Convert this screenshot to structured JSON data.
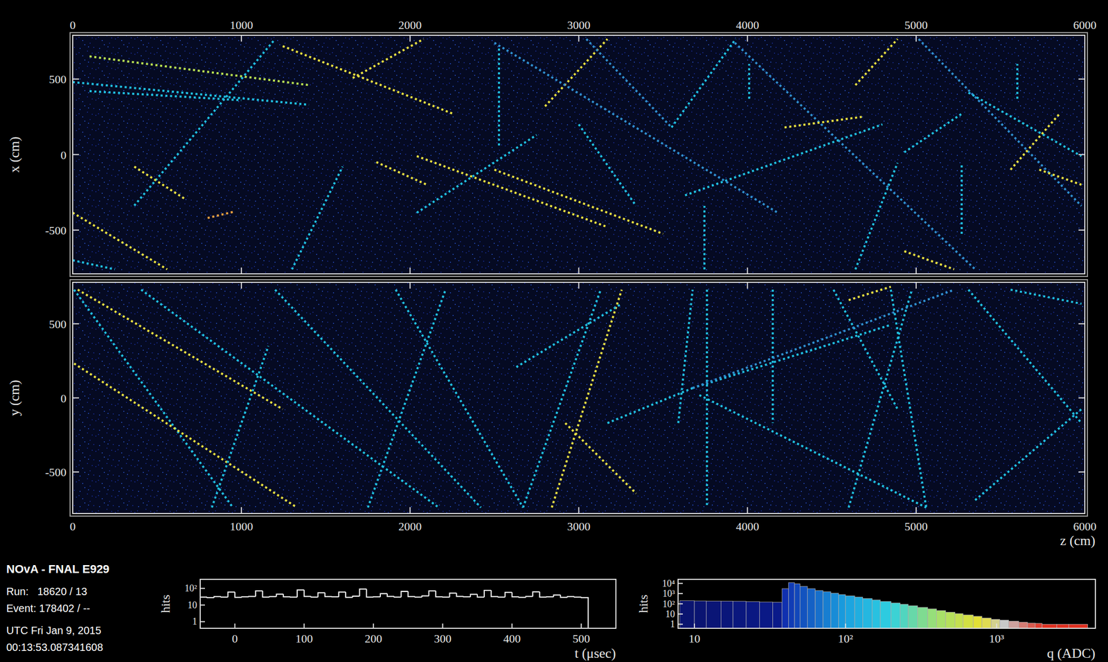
{
  "chart_data": [
    {
      "type": "line",
      "ylabel": "x (cm)",
      "xlim": [
        0,
        6000
      ],
      "xticks": [
        0,
        1000,
        2000,
        3000,
        4000,
        5000,
        6000
      ],
      "ylim": [
        -790,
        790
      ],
      "yticks": [
        -500,
        0,
        500
      ],
      "grid": false,
      "line_style": "dotted",
      "series": [
        {
          "color": "#b8e050",
          "x": [
            100,
            1400
          ],
          "values": [
            650,
            460
          ]
        },
        {
          "color": "#20c0e0",
          "x": [
            0,
            1400
          ],
          "values": [
            480,
            330
          ]
        },
        {
          "color": "#20c0e0",
          "x": [
            100,
            1000
          ],
          "values": [
            420,
            360
          ]
        },
        {
          "color": "#e8e040",
          "x": [
            1245,
            2250
          ],
          "values": [
            718,
            272
          ]
        },
        {
          "color": "#20c0e0",
          "x": [
            365,
            1200
          ],
          "values": [
            -338,
            765
          ]
        },
        {
          "color": "#e8e040",
          "x": [
            0,
            560
          ],
          "values": [
            -385,
            -760
          ]
        },
        {
          "color": "#20c0e0",
          "x": [
            1300,
            1600
          ],
          "values": [
            -760,
            -80
          ]
        },
        {
          "color": "#e8e040",
          "x": [
            1800,
            2100
          ],
          "values": [
            -50,
            -200
          ]
        },
        {
          "color": "#e8e040",
          "x": [
            2040,
            3170
          ],
          "values": [
            -10,
            -480
          ]
        },
        {
          "color": "#20c0e0",
          "x": [
            2040,
            2750
          ],
          "values": [
            -385,
            130
          ]
        },
        {
          "color": "#e8e040",
          "x": [
            1660,
            2080
          ],
          "values": [
            507,
            765
          ]
        },
        {
          "color": "#e8e040",
          "x": [
            2800,
            3170
          ],
          "values": [
            320,
            765
          ]
        },
        {
          "color": "#20c0e0",
          "x": [
            2527,
            2527
          ],
          "values": [
            60,
            720
          ]
        },
        {
          "color": "#e8e040",
          "x": [
            2500,
            3500
          ],
          "values": [
            -100,
            -525
          ]
        },
        {
          "color": "#3090d0",
          "x": [
            3045,
            3550
          ],
          "values": [
            765,
            180
          ]
        },
        {
          "color": "#20c0e0",
          "x": [
            3550,
            3930
          ],
          "values": [
            180,
            765
          ]
        },
        {
          "color": "#3090d0",
          "x": [
            3925,
            5350
          ],
          "values": [
            740,
            -760
          ]
        },
        {
          "color": "#20c0e0",
          "x": [
            3630,
            4800
          ],
          "values": [
            -270,
            200
          ]
        },
        {
          "color": "#e8e040",
          "x": [
            4220,
            4680
          ],
          "values": [
            180,
            250
          ]
        },
        {
          "color": "#20c0e0",
          "x": [
            4640,
            4890
          ],
          "values": [
            -760,
            -55
          ]
        },
        {
          "color": "#20c0e0",
          "x": [
            4930,
            5270
          ],
          "values": [
            15,
            270
          ]
        },
        {
          "color": "#3090d0",
          "x": [
            5015,
            5980
          ],
          "values": [
            765,
            -340
          ]
        },
        {
          "color": "#20c0e0",
          "x": [
            5310,
            5980
          ],
          "values": [
            410,
            -10
          ]
        },
        {
          "color": "#e8e040",
          "x": [
            5560,
            5850
          ],
          "values": [
            -100,
            270
          ]
        },
        {
          "color": "#e8e040",
          "x": [
            4640,
            4890
          ],
          "values": [
            460,
            765
          ]
        },
        {
          "color": "#e8e040",
          "x": [
            4930,
            5225
          ],
          "values": [
            -640,
            -760
          ]
        },
        {
          "color": "#20c0e0",
          "x": [
            3000,
            3340
          ],
          "values": [
            200,
            -340
          ]
        },
        {
          "color": "#e8e040",
          "x": [
            5730,
            5980
          ],
          "values": [
            -100,
            -200
          ]
        },
        {
          "color": "#20c0e0",
          "x": [
            4010,
            4010
          ],
          "values": [
            370,
            600
          ]
        },
        {
          "color": "#20c0e0",
          "x": [
            3745,
            3745
          ],
          "values": [
            -760,
            -340
          ]
        },
        {
          "color": "#20c0e0",
          "x": [
            5270,
            5270
          ],
          "values": [
            -525,
            -55
          ]
        },
        {
          "color": "#20c0e0",
          "x": [
            5600,
            5600
          ],
          "values": [
            370,
            600
          ]
        },
        {
          "color": "#3090d0",
          "x": [
            2500,
            4180
          ],
          "values": [
            740,
            -385
          ]
        },
        {
          "color": "#20c0e0",
          "x": [
            0,
            250
          ],
          "values": [
            -700,
            -760
          ]
        },
        {
          "color": "#e8e040",
          "x": [
            365,
            660
          ],
          "values": [
            -80,
            -290
          ]
        },
        {
          "color": "#e8a040",
          "x": [
            800,
            950
          ],
          "values": [
            -420,
            -380
          ]
        }
      ]
    },
    {
      "type": "line",
      "xlabel": "z (cm)",
      "ylabel": "y (cm)",
      "xlim": [
        0,
        6000
      ],
      "xticks": [
        0,
        1000,
        2000,
        3000,
        4000,
        5000,
        6000
      ],
      "ylim": [
        -780,
        780
      ],
      "yticks": [
        -500,
        0,
        500
      ],
      "grid": false,
      "line_style": "dotted",
      "series": [
        {
          "color": "#20c0e0",
          "x": [
            8,
            950
          ],
          "values": [
            730,
            -740
          ]
        },
        {
          "color": "#e8e040",
          "x": [
            8,
            1330
          ],
          "values": [
            232,
            -740
          ]
        },
        {
          "color": "#20c0e0",
          "x": [
            406,
            2170
          ],
          "values": [
            730,
            -740
          ]
        },
        {
          "color": "#20c0e0",
          "x": [
            1200,
            2420
          ],
          "values": [
            730,
            -740
          ]
        },
        {
          "color": "#e8e040",
          "x": [
            30,
            1245
          ],
          "values": [
            730,
            -76
          ]
        },
        {
          "color": "#20c0e0",
          "x": [
            825,
            1160
          ],
          "values": [
            -740,
            350
          ]
        },
        {
          "color": "#20c0e0",
          "x": [
            1915,
            2670
          ],
          "values": [
            730,
            -740
          ]
        },
        {
          "color": "#20c0e0",
          "x": [
            1750,
            2210
          ],
          "values": [
            -740,
            730
          ]
        },
        {
          "color": "#20c0e0",
          "x": [
            2670,
            3130
          ],
          "values": [
            -740,
            730
          ]
        },
        {
          "color": "#e8e040",
          "x": [
            2840,
            3255
          ],
          "values": [
            -740,
            730
          ]
        },
        {
          "color": "#e8e040",
          "x": [
            2920,
            3340
          ],
          "values": [
            -170,
            -645
          ]
        },
        {
          "color": "#20c0e0",
          "x": [
            3675,
            4850
          ],
          "values": [
            66,
            493
          ]
        },
        {
          "color": "#20c0e0",
          "x": [
            2630,
            3255
          ],
          "values": [
            208,
            635
          ]
        },
        {
          "color": "#20c0e0",
          "x": [
            3715,
            5060
          ],
          "values": [
            19,
            -740
          ]
        },
        {
          "color": "#20c0e0",
          "x": [
            4510,
            4890
          ],
          "values": [
            730,
            -76
          ]
        },
        {
          "color": "#e8e040",
          "x": [
            4600,
            4850
          ],
          "values": [
            660,
            750
          ]
        },
        {
          "color": "#20c0e0",
          "x": [
            5310,
            5980
          ],
          "values": [
            730,
            -170
          ]
        },
        {
          "color": "#20c0e0",
          "x": [
            5350,
            5980
          ],
          "values": [
            -690,
            -76
          ]
        },
        {
          "color": "#20c0e0",
          "x": [
            4850,
            5060
          ],
          "values": [
            730,
            -740
          ]
        },
        {
          "color": "#20c0e0",
          "x": [
            4600,
            4975
          ],
          "values": [
            -740,
            730
          ]
        },
        {
          "color": "#20c0e0",
          "x": [
            5560,
            5980
          ],
          "values": [
            730,
            635
          ]
        },
        {
          "color": "#20c0e0",
          "x": [
            3590,
            3675
          ],
          "values": [
            -170,
            730
          ]
        },
        {
          "color": "#20c0e0",
          "x": [
            4150,
            4150
          ],
          "values": [
            730,
            -170
          ]
        },
        {
          "color": "#20c0e0",
          "x": [
            3760,
            3760
          ],
          "values": [
            730,
            -740
          ]
        },
        {
          "color": "#20c0e0",
          "x": [
            3170,
            3675
          ],
          "values": [
            -170,
            66
          ]
        },
        {
          "color": "#3090d0",
          "x": [
            3675,
            5225
          ],
          "values": [
            66,
            730
          ]
        }
      ]
    },
    {
      "type": "histogram",
      "xlabel": "t (μsec)",
      "ylabel": "hits",
      "log": "y",
      "color": "#ffffff",
      "xlim": [
        -50,
        550
      ],
      "xticks": [
        0,
        100,
        200,
        300,
        400,
        500
      ],
      "ylim": [
        0.4,
        350
      ],
      "yticks": [
        1,
        10,
        {
          "value": 100,
          "label": "10²"
        }
      ],
      "bins": [
        -50,
        -40,
        -30,
        -20,
        -10,
        0,
        10,
        20,
        30,
        40,
        50,
        60,
        70,
        80,
        90,
        100,
        110,
        120,
        130,
        140,
        150,
        160,
        170,
        180,
        190,
        200,
        210,
        220,
        230,
        240,
        250,
        260,
        270,
        280,
        290,
        300,
        310,
        320,
        330,
        340,
        350,
        360,
        370,
        380,
        390,
        400,
        410,
        420,
        430,
        440,
        450,
        460,
        470,
        480,
        490,
        500,
        510
      ],
      "values": [
        30,
        28,
        32,
        30,
        60,
        29,
        31,
        33,
        70,
        30,
        32,
        45,
        31,
        30,
        80,
        33,
        30,
        55,
        32,
        31,
        60,
        29,
        34,
        90,
        30,
        31,
        48,
        33,
        30,
        65,
        32,
        30,
        35,
        70,
        31,
        30,
        52,
        33,
        31,
        44,
        30,
        75,
        32,
        30,
        58,
        31,
        29,
        33,
        62,
        30,
        31,
        40,
        29,
        32,
        30,
        28
      ]
    },
    {
      "type": "histogram",
      "xlabel": "q (ADC)",
      "ylabel": "hits",
      "log": true,
      "xlim": [
        7.8,
        4500
      ],
      "xticks": [
        10,
        {
          "value": 100,
          "label": "10²"
        },
        {
          "value": 1000,
          "label": "10³"
        }
      ],
      "ylim": [
        0.4,
        25000
      ],
      "yticks": [
        1,
        10,
        {
          "value": 100,
          "label": "10²"
        },
        {
          "value": 1000,
          "label": "10³"
        },
        {
          "value": 10000,
          "label": "10⁴"
        }
      ],
      "bins": [
        8,
        10,
        12,
        15,
        18,
        22,
        27,
        33,
        38,
        42,
        46,
        50,
        56,
        63,
        71,
        80,
        90,
        100,
        115,
        130,
        150,
        170,
        200,
        230,
        260,
        300,
        350,
        400,
        460,
        530,
        600,
        700,
        800,
        920,
        1050,
        1200,
        1400,
        1600,
        1800,
        2000,
        2500,
        3000,
        4000
      ],
      "values": [
        200,
        190,
        185,
        180,
        175,
        165,
        150,
        140,
        3000,
        12000,
        9000,
        5000,
        3000,
        2000,
        1500,
        1100,
        800,
        600,
        450,
        330,
        240,
        170,
        120,
        90,
        65,
        45,
        32,
        22,
        15,
        11,
        8,
        6,
        4,
        3,
        2.5,
        2,
        1.6,
        1.3,
        1.2,
        1,
        1,
        1
      ]
    }
  ],
  "caption": {
    "title": "NOvA - FNAL E929",
    "lines": [
      "Run:   18620 / 13",
      "Event: 178402 / --",
      "UTC Fri Jan 9, 2015",
      "00:13:53.087341608"
    ]
  }
}
